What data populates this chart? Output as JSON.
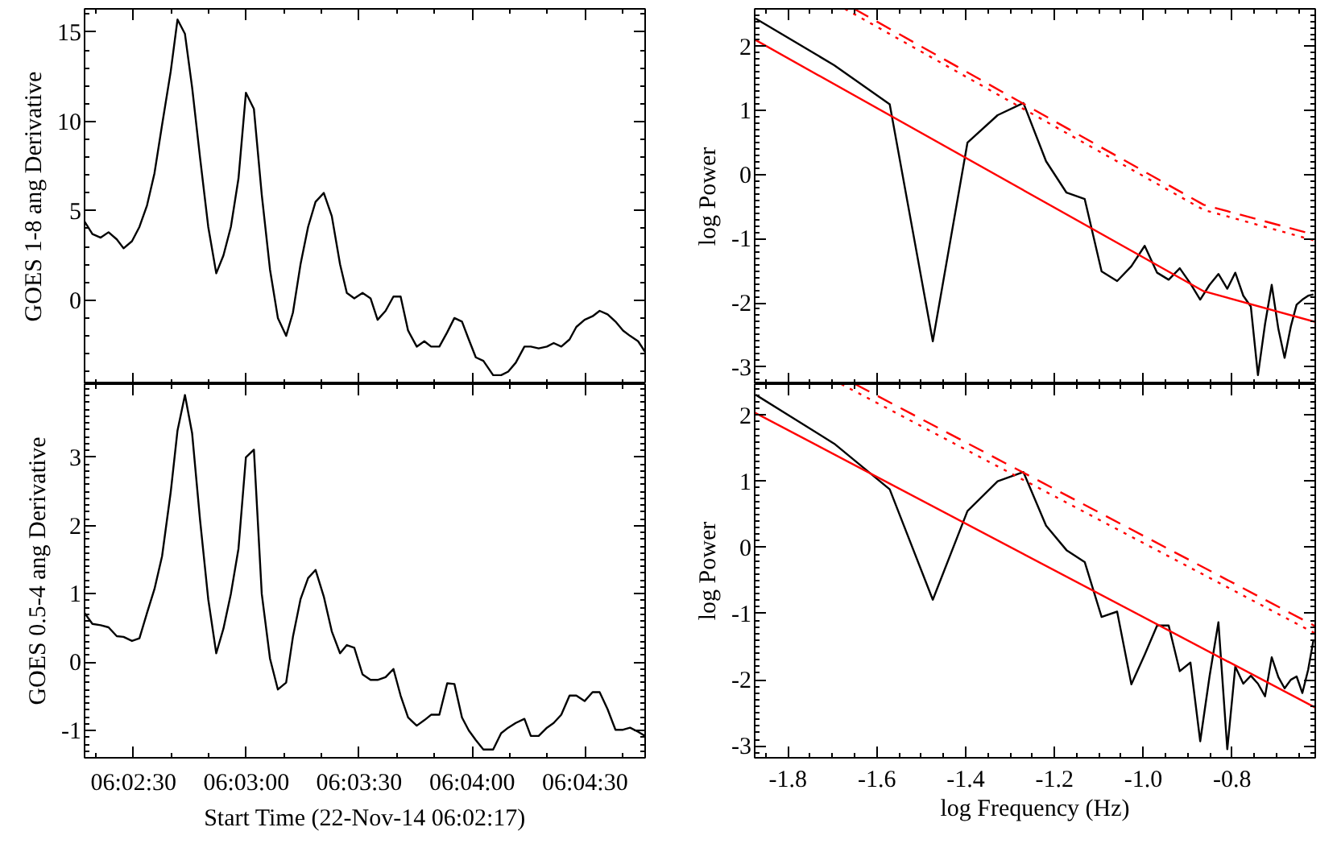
{
  "chart_data": [
    {
      "type": "line",
      "ylabel": "GOES 1-8 ang Derivative",
      "xlim": [
        6.03806,
        6.07944
      ],
      "ylim": [
        -4.7,
        16.3
      ],
      "tick_labels": "y",
      "xticks": [
        6.04167,
        6.05,
        6.05833,
        6.06667,
        6.075
      ],
      "yticks": [
        0,
        5,
        10,
        15
      ],
      "series": [
        {
          "color": "#000000",
          "x": [
            6.03806,
            6.03864,
            6.03925,
            6.03983,
            6.04044,
            6.04094,
            6.04156,
            6.04211,
            6.04267,
            6.04322,
            6.04378,
            6.04442,
            6.04492,
            6.04547,
            6.046,
            6.04658,
            6.04719,
            6.04778,
            6.04831,
            6.04886,
            6.04942,
            6.04997,
            6.05056,
            6.05114,
            6.05175,
            6.05233,
            6.05294,
            6.05344,
            6.054,
            6.05456,
            6.05511,
            6.05572,
            6.05631,
            6.05692,
            6.05742,
            6.05797,
            6.05858,
            6.05917,
            6.05969,
            6.06028,
            6.06086,
            6.06139,
            6.06194,
            6.06258,
            6.06314,
            6.06364,
            6.06425,
            6.06483,
            6.06536,
            6.06592,
            6.06642,
            6.06694,
            6.0675,
            6.06822,
            6.06881,
            6.06933,
            6.06989,
            6.07053,
            6.071,
            6.07158,
            6.07219,
            6.07269,
            6.07325,
            6.07386,
            6.07436,
            6.07497,
            6.07556,
            6.07608,
            6.07667,
            6.07725,
            6.07781,
            6.07833,
            6.07892,
            6.07944
          ],
          "values": [
            4.4,
            3.7,
            3.5,
            3.8,
            3.4,
            2.9,
            3.3,
            4.1,
            5.3,
            7.1,
            9.8,
            12.8,
            15.7,
            14.9,
            11.9,
            8.0,
            4.1,
            1.5,
            2.5,
            4.1,
            6.8,
            11.6,
            10.7,
            5.9,
            1.7,
            -1.0,
            -2.0,
            -0.7,
            2.0,
            4.1,
            5.5,
            6.0,
            4.7,
            2.0,
            0.4,
            0.1,
            0.4,
            0.1,
            -1.1,
            -0.6,
            0.2,
            0.2,
            -1.7,
            -2.6,
            -2.3,
            -2.6,
            -2.6,
            -1.8,
            -1.0,
            -1.2,
            -2.2,
            -3.2,
            -3.4,
            -4.2,
            -4.2,
            -4.0,
            -3.5,
            -2.6,
            -2.6,
            -2.7,
            -2.6,
            -2.4,
            -2.6,
            -2.2,
            -1.5,
            -1.1,
            -0.9,
            -0.6,
            -0.8,
            -1.2,
            -1.7,
            -2.0,
            -2.3,
            -2.9
          ]
        }
      ]
    },
    {
      "type": "line",
      "ylabel": "log Power",
      "xlim": [
        -1.875,
        -0.613
      ],
      "ylim": [
        -3.27,
        2.59
      ],
      "tick_labels": "y",
      "xticks": [
        -1.8,
        -1.6,
        -1.4,
        -1.2,
        -1.0,
        -0.8
      ],
      "yticks": [
        -3,
        -2,
        -1,
        0,
        1,
        2
      ],
      "series": [
        {
          "color": "#000000",
          "x": [
            -1.873,
            -1.696,
            -1.571,
            -1.474,
            -1.396,
            -1.328,
            -1.27,
            -1.219,
            -1.173,
            -1.132,
            -1.094,
            -1.059,
            -1.027,
            -0.997,
            -0.969,
            -0.943,
            -0.918,
            -0.894,
            -0.872,
            -0.851,
            -0.831,
            -0.811,
            -0.793,
            -0.775,
            -0.758,
            -0.742,
            -0.726,
            -0.711,
            -0.696,
            -0.682,
            -0.668,
            -0.655,
            -0.642,
            -0.629,
            -0.617
          ],
          "values": [
            2.44,
            1.71,
            1.1,
            -2.6,
            0.5,
            0.93,
            1.12,
            0.21,
            -0.28,
            -0.38,
            -1.51,
            -1.66,
            -1.43,
            -1.11,
            -1.53,
            -1.64,
            -1.46,
            -1.7,
            -1.95,
            -1.72,
            -1.55,
            -1.78,
            -1.53,
            -1.89,
            -2.06,
            -3.13,
            -2.33,
            -1.72,
            -2.41,
            -2.86,
            -2.37,
            -2.03,
            -1.95,
            -1.89,
            -1.87
          ]
        },
        {
          "color": "#ff0000",
          "x": [
            -1.875,
            -0.864,
            -0.613
          ],
          "values": [
            2.11,
            -1.82,
            -2.3
          ]
        },
        {
          "color": "#ff0000",
          "line_style": "dashed",
          "x": [
            -1.651,
            -0.864,
            -0.613
          ],
          "values": [
            2.59,
            -0.47,
            -0.94
          ]
        },
        {
          "color": "#ff0000",
          "line_style": "dotted",
          "x": [
            -1.672,
            -0.864,
            -0.613
          ],
          "values": [
            2.59,
            -0.55,
            -1.03
          ]
        }
      ]
    },
    {
      "type": "line",
      "xlabel": "Start Time (22-Nov-14 06:02:17)",
      "ylabel": "GOES 0.5-4 ang Derivative",
      "xlim": [
        6.03806,
        6.07944
      ],
      "ylim": [
        -1.4,
        4.07
      ],
      "xticks": [
        {
          "value": 6.04167,
          "label": "06:02:30"
        },
        {
          "value": 6.05,
          "label": "06:03:00"
        },
        {
          "value": 6.05833,
          "label": "06:03:30"
        },
        {
          "value": 6.06667,
          "label": "06:04:00"
        },
        {
          "value": 6.075,
          "label": "06:04:30"
        }
      ],
      "yticks": [
        -1,
        0,
        1,
        2,
        3
      ],
      "series": [
        {
          "color": "#000000",
          "x": [
            6.03806,
            6.03864,
            6.03925,
            6.03983,
            6.04044,
            6.04094,
            6.04156,
            6.04211,
            6.04267,
            6.04322,
            6.04378,
            6.04442,
            6.04492,
            6.04547,
            6.046,
            6.04658,
            6.04719,
            6.04778,
            6.04831,
            6.04886,
            6.04942,
            6.04997,
            6.05056,
            6.05114,
            6.05175,
            6.05233,
            6.05294,
            6.05344,
            6.054,
            6.05456,
            6.05511,
            6.05572,
            6.05631,
            6.05692,
            6.05742,
            6.05797,
            6.05858,
            6.05917,
            6.05969,
            6.06028,
            6.06086,
            6.06139,
            6.06194,
            6.06258,
            6.06314,
            6.06364,
            6.06425,
            6.06483,
            6.06536,
            6.06592,
            6.06642,
            6.06694,
            6.0675,
            6.06822,
            6.06881,
            6.06933,
            6.06989,
            6.07053,
            6.071,
            6.07158,
            6.07219,
            6.07269,
            6.07325,
            6.07386,
            6.07436,
            6.07497,
            6.07556,
            6.07608,
            6.07667,
            6.07725,
            6.07781,
            6.07833,
            6.07892,
            6.07944
          ],
          "values": [
            0.72,
            0.56,
            0.54,
            0.51,
            0.38,
            0.37,
            0.31,
            0.35,
            0.72,
            1.07,
            1.55,
            2.49,
            3.39,
            3.91,
            3.35,
            2.09,
            0.92,
            0.13,
            0.49,
            1.0,
            1.66,
            3.0,
            3.11,
            1.0,
            0.05,
            -0.4,
            -0.3,
            0.37,
            0.92,
            1.23,
            1.35,
            0.96,
            0.45,
            0.13,
            0.25,
            0.21,
            -0.18,
            -0.26,
            -0.26,
            -0.22,
            -0.1,
            -0.49,
            -0.81,
            -0.93,
            -0.85,
            -0.77,
            -0.77,
            -0.31,
            -0.32,
            -0.81,
            -1.0,
            -1.14,
            -1.28,
            -1.28,
            -1.04,
            -0.96,
            -0.89,
            -0.83,
            -1.08,
            -1.08,
            -0.96,
            -0.89,
            -0.77,
            -0.49,
            -0.49,
            -0.57,
            -0.44,
            -0.44,
            -0.69,
            -0.99,
            -0.99,
            -0.96,
            -1.02,
            -1.08
          ]
        }
      ]
    },
    {
      "type": "line",
      "xlabel": "log Frequency (Hz)",
      "ylabel": "log Power",
      "xlim": [
        -1.875,
        -0.613
      ],
      "ylim": [
        -3.18,
        2.47
      ],
      "xticks": [
        -1.8,
        -1.6,
        -1.4,
        -1.2,
        {
          "value": -1.0,
          "label": "-1.0"
        },
        -0.8
      ],
      "yticks": [
        -3,
        -2,
        -1,
        0,
        1,
        2
      ],
      "series": [
        {
          "color": "#000000",
          "x": [
            -1.873,
            -1.696,
            -1.571,
            -1.474,
            -1.396,
            -1.328,
            -1.27,
            -1.219,
            -1.173,
            -1.132,
            -1.094,
            -1.059,
            -1.027,
            -0.997,
            -0.969,
            -0.943,
            -0.918,
            -0.894,
            -0.872,
            -0.851,
            -0.831,
            -0.811,
            -0.793,
            -0.775,
            -0.758,
            -0.742,
            -0.726,
            -0.711,
            -0.696,
            -0.682,
            -0.668,
            -0.655,
            -0.642,
            -0.629,
            -0.617
          ],
          "values": [
            2.31,
            1.57,
            0.88,
            -0.79,
            0.55,
            1.0,
            1.14,
            0.33,
            -0.04,
            -0.22,
            -1.05,
            -0.97,
            -2.07,
            -1.62,
            -1.18,
            -1.18,
            -1.87,
            -1.74,
            -2.93,
            -1.95,
            -1.13,
            -3.05,
            -1.8,
            -2.06,
            -1.94,
            -2.06,
            -2.25,
            -1.66,
            -1.96,
            -2.13,
            -2.0,
            -1.95,
            -2.2,
            -1.85,
            -1.4
          ]
        },
        {
          "color": "#ff0000",
          "x": [
            -1.875,
            -0.613
          ],
          "values": [
            2.04,
            -2.42
          ]
        },
        {
          "color": "#ff0000",
          "line_style": "dashed",
          "x": [
            -1.649,
            -0.613
          ],
          "values": [
            2.47,
            -1.19
          ]
        },
        {
          "color": "#ff0000",
          "line_style": "dotted",
          "x": [
            -1.68,
            -0.613
          ],
          "values": [
            2.47,
            -1.3
          ]
        }
      ]
    }
  ]
}
